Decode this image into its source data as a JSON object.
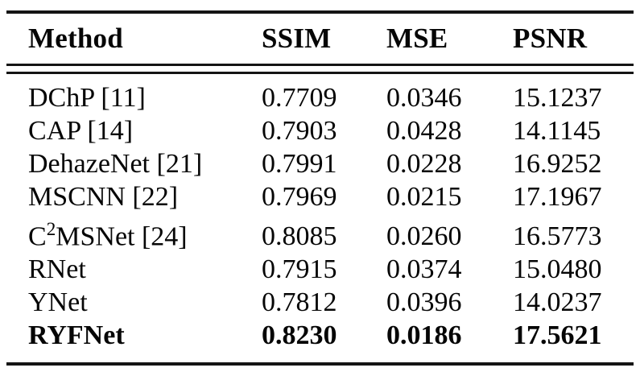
{
  "colors": {
    "background": "#ffffff",
    "text": "#060606",
    "rule": "#141414"
  },
  "table": {
    "columns": [
      "Method",
      "SSIM",
      "MSE",
      "PSNR"
    ],
    "rows": [
      {
        "method": "DChP [11]",
        "ssim": "0.7709",
        "mse": "0.0346",
        "psnr": "15.1237"
      },
      {
        "method": "CAP [14]",
        "ssim": "0.7903",
        "mse": "0.0428",
        "psnr": "14.1145"
      },
      {
        "method": "DehazeNet [21]",
        "ssim": "0.7991",
        "mse": "0.0228",
        "psnr": "16.9252"
      },
      {
        "method": "MSCNN [22]",
        "ssim": "0.7969",
        "mse": "0.0215",
        "psnr": "17.1967"
      },
      {
        "method": "C²MSNet [24]",
        "ssim": "0.8085",
        "mse": "0.0260",
        "psnr": "16.5773"
      },
      {
        "method": "RNet",
        "ssim": "0.7915",
        "mse": "0.0374",
        "psnr": "15.0480"
      },
      {
        "method": "YNet",
        "ssim": "0.7812",
        "mse": "0.0396",
        "psnr": "14.0237"
      },
      {
        "method": "RYFNet",
        "ssim": "0.8230",
        "mse": "0.0186",
        "psnr": "17.5621"
      }
    ]
  }
}
